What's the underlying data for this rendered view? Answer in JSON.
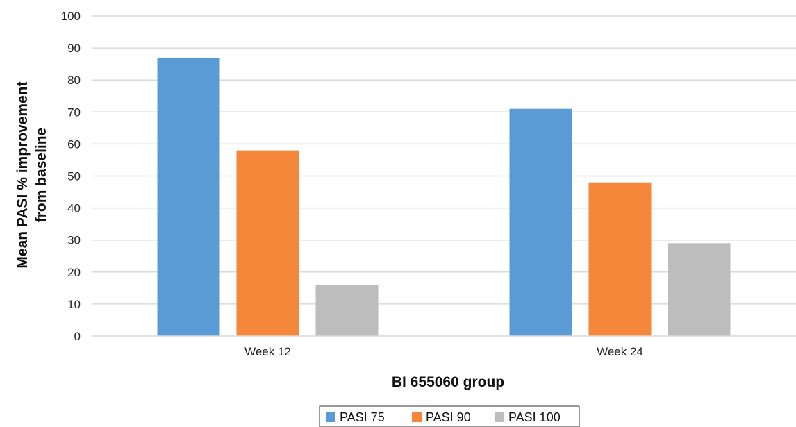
{
  "chart_data": {
    "type": "bar",
    "categories": [
      "Week 12",
      "Week 24"
    ],
    "series": [
      {
        "name": "PASI 75",
        "values": [
          87,
          71
        ],
        "color": "#5b9bd5"
      },
      {
        "name": "PASI 90",
        "values": [
          58,
          48
        ],
        "color": "#f4873a"
      },
      {
        "name": "PASI 100",
        "values": [
          16,
          29
        ],
        "color": "#bdbdbd"
      }
    ],
    "title": "",
    "xlabel": "BI 655060 group",
    "ylabel_lines": [
      "Mean PASI % improvement",
      "from baseline"
    ],
    "ylim": [
      0,
      100
    ],
    "yticks": [
      0,
      10,
      20,
      30,
      40,
      50,
      60,
      70,
      80,
      90,
      100
    ],
    "grid": true,
    "grid_color": "#d9d9d9",
    "legend_position": "bottom-center"
  }
}
